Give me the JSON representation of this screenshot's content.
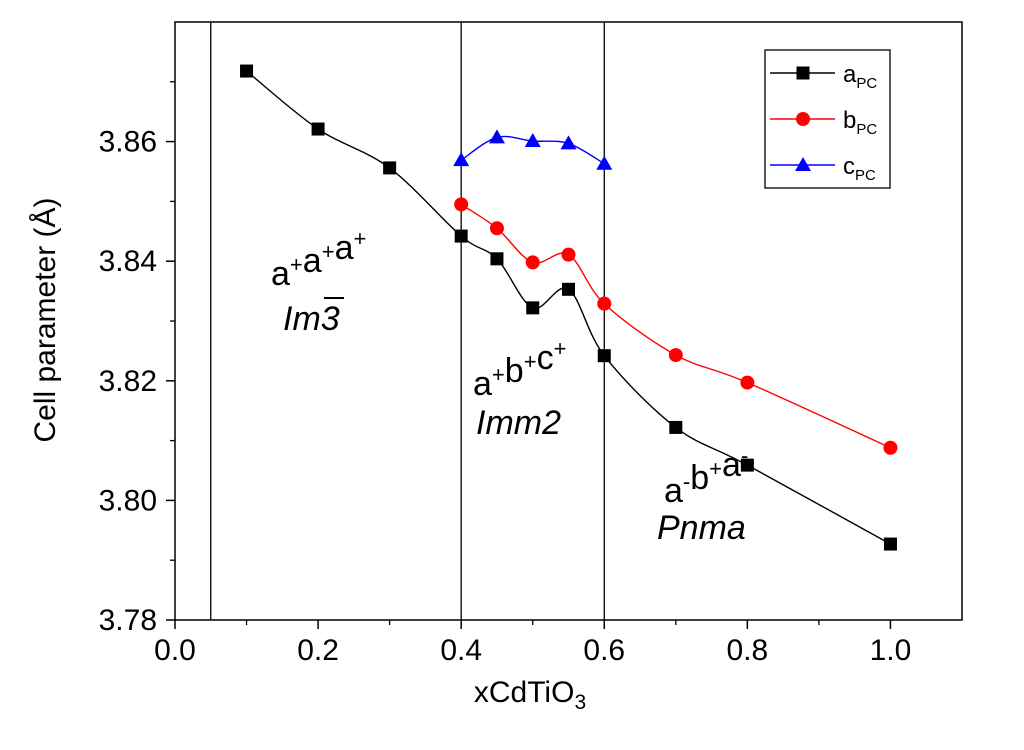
{
  "chart_data": {
    "type": "line",
    "xlabel": "xCdTiO",
    "xlabel_sub": "3",
    "ylabel": "Cell parameter (Å)",
    "xlim": [
      0.0,
      1.1
    ],
    "ylim": [
      3.78,
      3.88
    ],
    "x_ticks": [
      "0.0",
      "0.2",
      "0.4",
      "0.6",
      "0.8",
      "1.0"
    ],
    "y_ticks": [
      "3.78",
      "3.80",
      "3.82",
      "3.84",
      "3.86"
    ],
    "phase_boundaries": [
      0.05,
      0.4,
      0.6
    ],
    "grid": false,
    "legend_position": "top-right",
    "series": [
      {
        "name": "a",
        "name_sub": "PC",
        "color": "#000000",
        "marker": "square",
        "x": [
          0.1,
          0.2,
          0.3,
          0.4,
          0.45,
          0.5,
          0.55,
          0.6,
          0.7,
          0.8,
          1.0
        ],
        "y": [
          3.8718,
          3.8621,
          3.8556,
          3.8442,
          3.8404,
          3.8322,
          3.8353,
          3.8242,
          3.8122,
          3.8059,
          3.7927
        ]
      },
      {
        "name": "b",
        "name_sub": "PC",
        "color": "#ff0000",
        "marker": "circle",
        "x": [
          0.4,
          0.45,
          0.5,
          0.55,
          0.6,
          0.7,
          0.8,
          1.0
        ],
        "y": [
          3.8495,
          3.8455,
          3.8398,
          3.8411,
          3.8329,
          3.8243,
          3.8197,
          3.8088
        ]
      },
      {
        "name": "c",
        "name_sub": "PC",
        "color": "#0000ff",
        "marker": "triangle",
        "x": [
          0.4,
          0.45,
          0.5,
          0.55,
          0.6
        ],
        "y": [
          3.8569,
          3.8607,
          3.8601,
          3.8597,
          3.8563
        ]
      }
    ],
    "annotations": [
      {
        "notation": [
          [
            "a",
            "+"
          ],
          [
            "a",
            "+"
          ],
          [
            "a",
            "+"
          ]
        ],
        "space_group": "Im3",
        "overline": true
      },
      {
        "notation": [
          [
            "a",
            "+"
          ],
          [
            "b",
            "+"
          ],
          [
            "c",
            "+"
          ]
        ],
        "space_group": "Imm2",
        "overline": false
      },
      {
        "notation": [
          [
            "a",
            "-"
          ],
          [
            "b",
            "+"
          ],
          [
            "a",
            "-"
          ]
        ],
        "space_group": "Pnma",
        "overline": false
      }
    ]
  }
}
